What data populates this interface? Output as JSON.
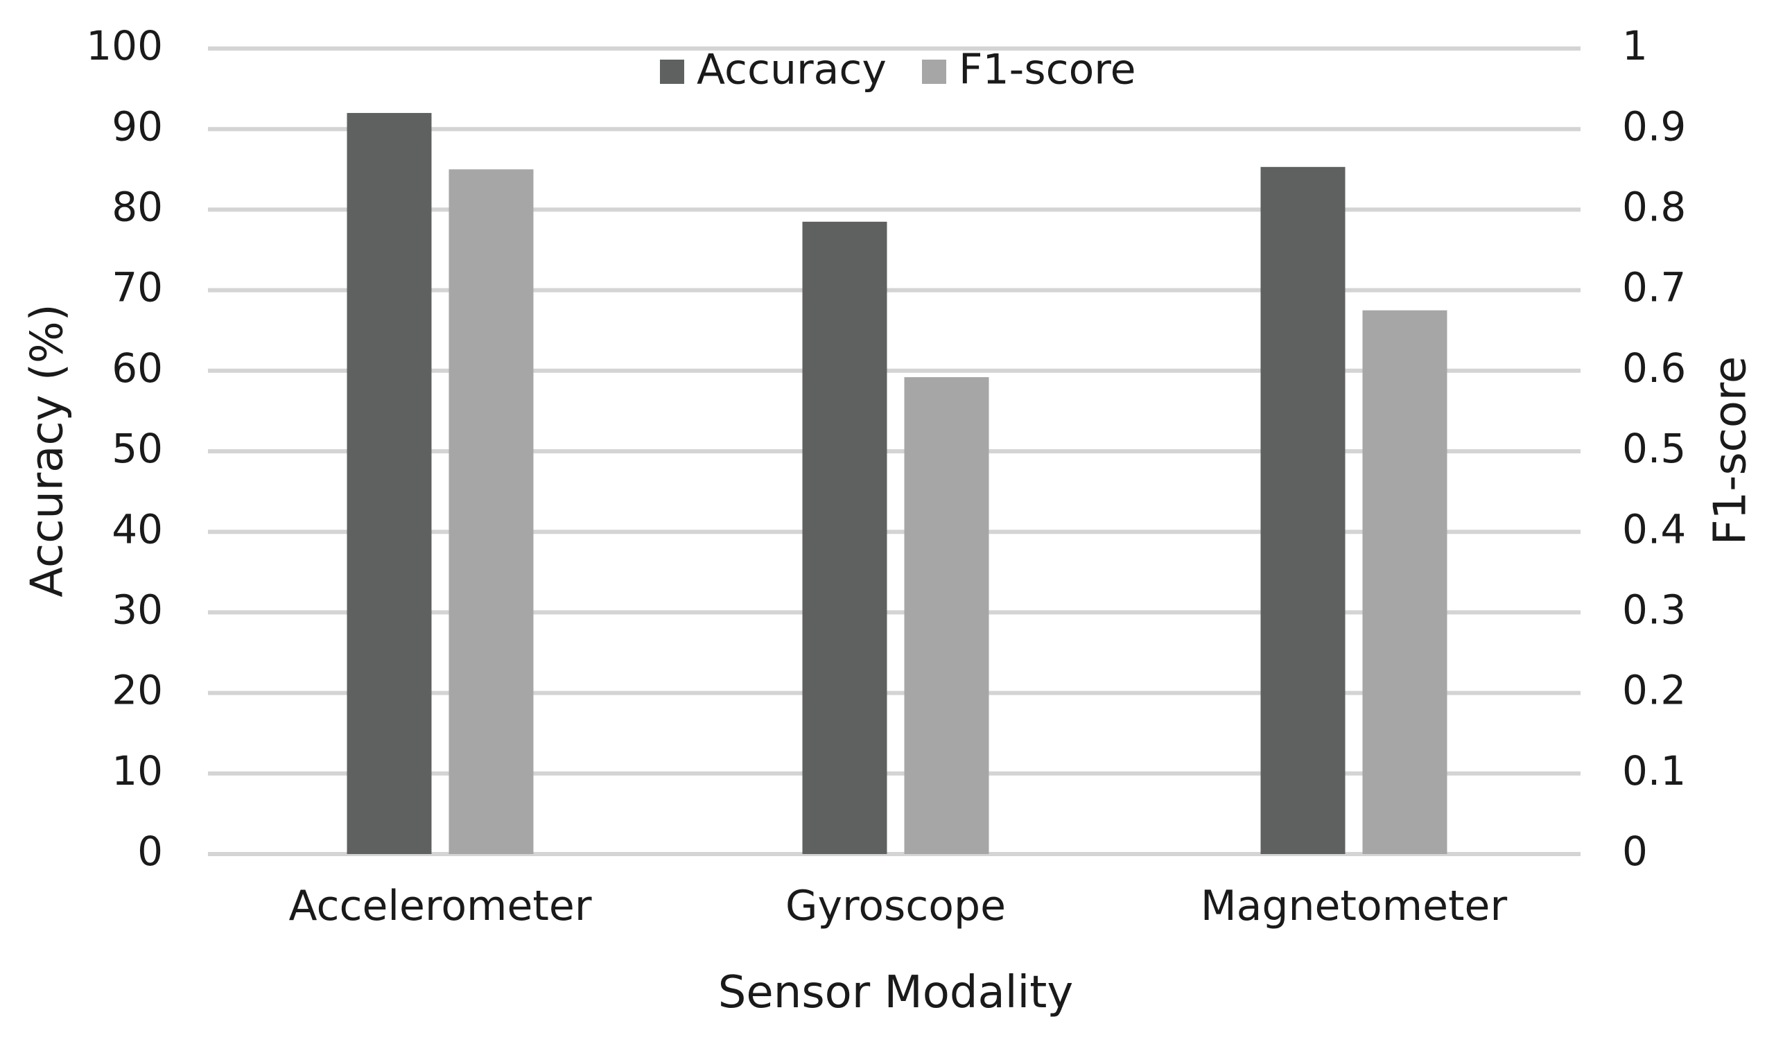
{
  "chart_data": {
    "type": "bar",
    "categories": [
      "Accelerometer",
      "Gyroscope",
      "Magnetometer"
    ],
    "series": [
      {
        "name": "Accuracy",
        "axis": "left",
        "color": "#5f6160",
        "values": [
          92.0,
          78.5,
          85.3
        ]
      },
      {
        "name": "F1-score",
        "axis": "right",
        "color": "#a6a6a6",
        "values": [
          0.85,
          0.592,
          0.675
        ]
      }
    ],
    "xlabel": "Sensor Modality",
    "ylabel": "Accuracy (%)",
    "y2label": "F1-score",
    "ylim": [
      0,
      100
    ],
    "y2lim": [
      0,
      1
    ],
    "yticks": [
      "0",
      "10",
      "20",
      "30",
      "40",
      "50",
      "60",
      "70",
      "80",
      "90",
      "100"
    ],
    "y2ticks": [
      "0",
      "0.1",
      "0.2",
      "0.3",
      "0.4",
      "0.5",
      "0.6",
      "0.7",
      "0.8",
      "0.9",
      "1"
    ],
    "grid": true,
    "legend_position": "top-center",
    "gridline_color": "#d4d4d4"
  }
}
